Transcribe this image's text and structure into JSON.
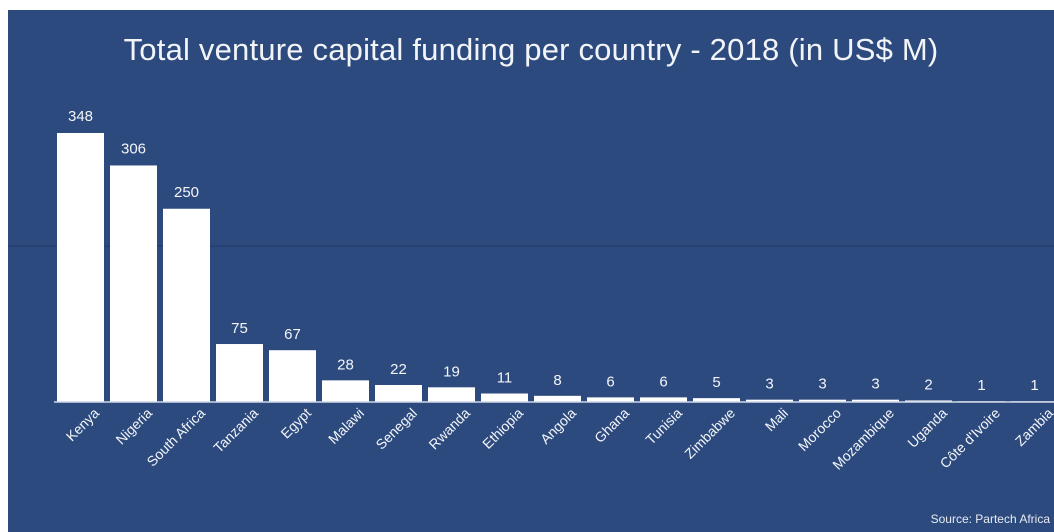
{
  "chart_data": {
    "type": "bar",
    "title": "Total venture capital funding per country - 2018 (in US$ M)",
    "categories": [
      "Kenya",
      "Nigeria",
      "South Africa",
      "Tanzania",
      "Egypt",
      "Malawi",
      "Senegal",
      "Rwanda",
      "Ethiopia",
      "Angola",
      "Ghana",
      "Tunisia",
      "Zimbabwe",
      "Mali",
      "Morocco",
      "Mozambique",
      "Uganda",
      "Côte d'Ivoire",
      "Zambia"
    ],
    "values": [
      348,
      306,
      250,
      75,
      67,
      28,
      22,
      19,
      11,
      8,
      6,
      6,
      5,
      3,
      3,
      3,
      2,
      1,
      1
    ],
    "data_labels": [
      "348",
      "306",
      "250",
      "75",
      "67",
      "28",
      "22",
      "19",
      "11",
      "8",
      "6",
      "6",
      "5",
      "3",
      "3",
      "3",
      "2",
      "1",
      "1"
    ],
    "xlabel": "",
    "ylabel": "",
    "ylim": [
      0,
      350
    ],
    "grid": true,
    "legend": "none",
    "source": "Source: Partech Africa",
    "colors": {
      "background": "#2c4a7e",
      "bar": "#ffffff",
      "text": "#f2f4f8"
    }
  }
}
